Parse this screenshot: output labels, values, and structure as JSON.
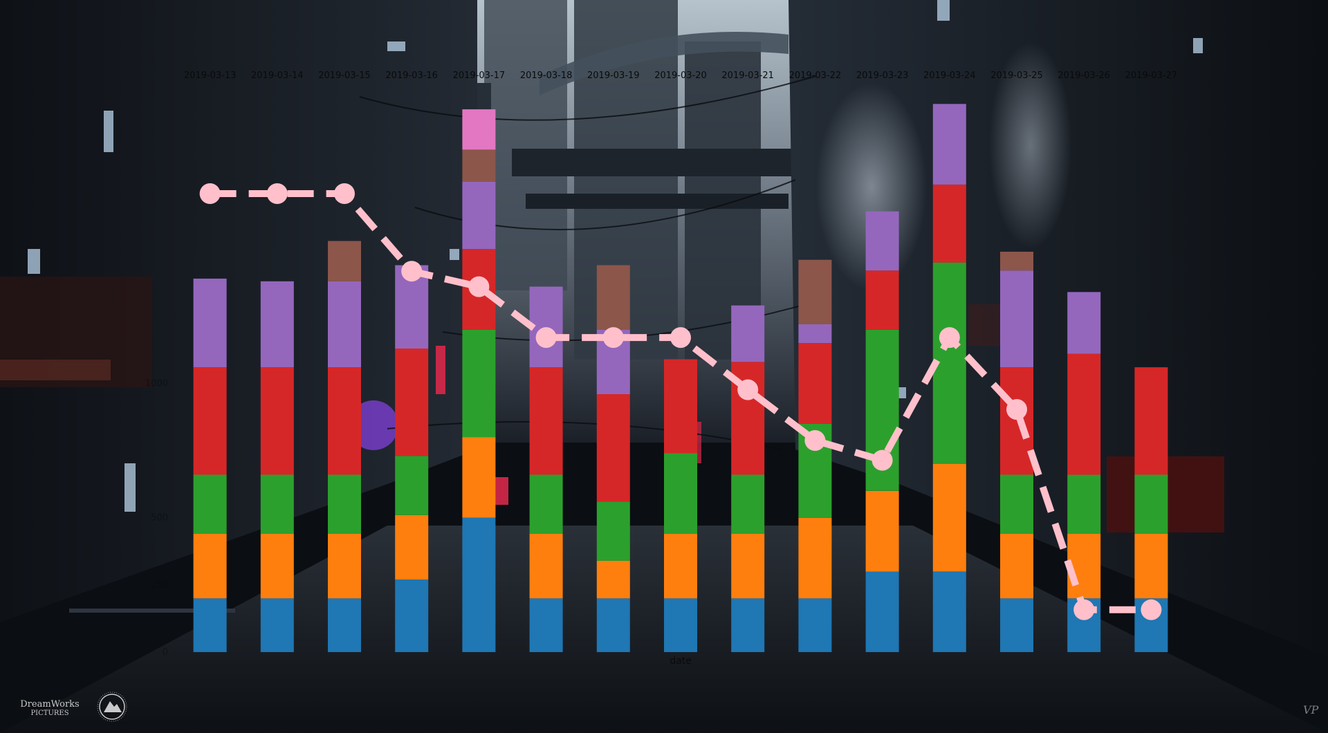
{
  "chart_data": {
    "type": "bar",
    "stacked": true,
    "title": "",
    "xlabel": "date",
    "ylabel": "",
    "categories": [
      "2019-03-13",
      "2019-03-14",
      "2019-03-15",
      "2019-03-16",
      "2019-03-17",
      "2019-03-18",
      "2019-03-19",
      "2019-03-20",
      "2019-03-21",
      "2019-03-22",
      "2019-03-23",
      "2019-03-24",
      "2019-03-25",
      "2019-03-26",
      "2019-03-27"
    ],
    "ylim": [
      0,
      2100
    ],
    "y_ticks": [
      0,
      250,
      500,
      1000
    ],
    "grid": false,
    "legend": "none",
    "series": [
      {
        "color": "#1f77b4",
        "values": [
          200,
          200,
          200,
          270,
          500,
          200,
          200,
          200,
          200,
          200,
          300,
          300,
          200,
          200,
          200
        ]
      },
      {
        "color": "#ff7f0e",
        "values": [
          240,
          240,
          240,
          240,
          300,
          240,
          140,
          240,
          240,
          300,
          300,
          400,
          240,
          240,
          240
        ]
      },
      {
        "color": "#2ca02c",
        "values": [
          220,
          220,
          220,
          220,
          400,
          220,
          220,
          300,
          220,
          350,
          600,
          750,
          220,
          220,
          220
        ]
      },
      {
        "color": "#d62728",
        "values": [
          400,
          400,
          400,
          400,
          300,
          400,
          400,
          350,
          420,
          300,
          220,
          290,
          400,
          450,
          400
        ]
      },
      {
        "color": "#9467bd",
        "values": [
          330,
          320,
          320,
          310,
          250,
          300,
          240,
          0,
          210,
          70,
          220,
          300,
          360,
          230,
          0
        ]
      },
      {
        "color": "#8c564b",
        "values": [
          0,
          0,
          150,
          0,
          120,
          0,
          240,
          0,
          0,
          240,
          0,
          0,
          70,
          0,
          0
        ]
      },
      {
        "color": "#e377c2",
        "values": [
          0,
          0,
          0,
          0,
          150,
          0,
          0,
          0,
          0,
          0,
          0,
          0,
          0,
          0,
          0
        ]
      }
    ],
    "line": {
      "color": "#ffc0cb",
      "dashed": true,
      "axis": "right",
      "values": [
        22.5,
        22.5,
        22.5,
        17.0,
        15.9,
        12.3,
        12.3,
        12.3,
        8.6,
        5.0,
        3.6,
        12.3,
        7.2,
        -7.0,
        -7.0
      ]
    },
    "y2lim": [
      -10,
      30
    ]
  },
  "branding": {
    "studio_line1": "DreamWorks",
    "studio_line2": "PICTURES",
    "signature": "VP"
  },
  "colors": {
    "sky": "#9aa9b6",
    "haze": "#4b5763",
    "building_dark": "#11151c",
    "building_mid": "#1d232c",
    "street": "#171b22",
    "neon_purple": "#7a3fd0",
    "neon_red": "#d8284a",
    "window_light": "#b9d3ea"
  }
}
